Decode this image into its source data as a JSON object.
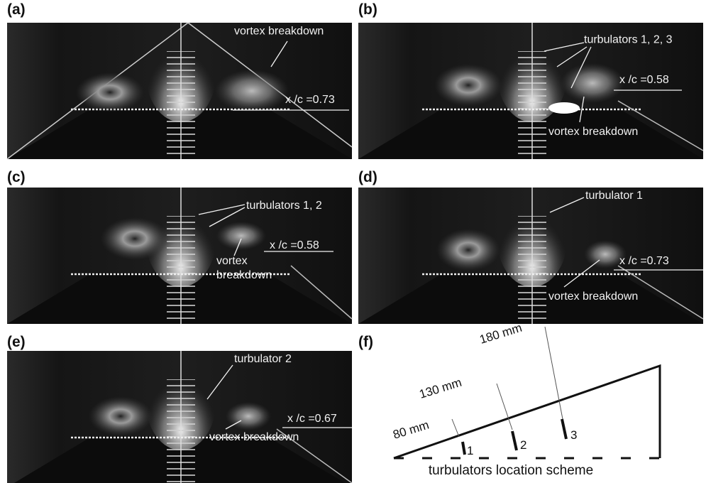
{
  "panels": [
    {
      "label": "(a)",
      "annotations": [
        "vortex breakdown",
        "x /c =0.73"
      ]
    },
    {
      "label": "(b)",
      "annotations": [
        "turbulators 1, 2, 3",
        "x /c =0.58",
        "vortex breakdown"
      ]
    },
    {
      "label": "(c)",
      "annotations": [
        "turbulators 1, 2",
        "x /c =0.58",
        "vortex",
        "breakdown"
      ]
    },
    {
      "label": "(d)",
      "annotations": [
        "turbulator 1",
        "x /c =0.73",
        "vortex breakdown"
      ]
    },
    {
      "label": "(e)",
      "annotations": [
        "turbulator 2",
        "x /c =0.67",
        "vortex breakdown"
      ]
    }
  ],
  "scheme": {
    "label": "(f)",
    "distances": [
      "80 mm",
      "130 mm",
      "180 mm"
    ],
    "turbulators": [
      "1",
      "2",
      "3"
    ],
    "caption": "turbulators location scheme"
  }
}
